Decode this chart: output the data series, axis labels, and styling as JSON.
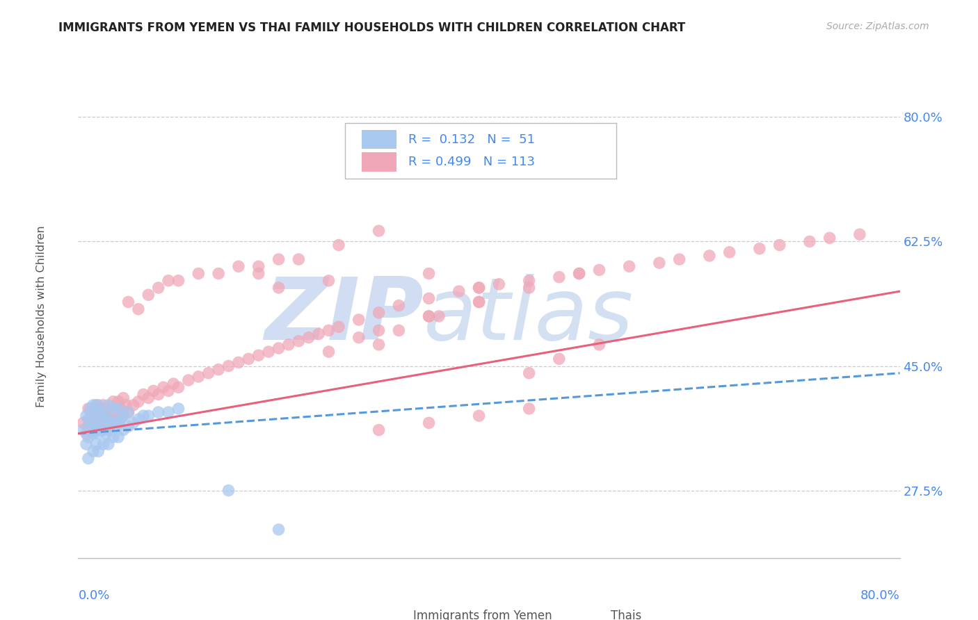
{
  "title": "IMMIGRANTS FROM YEMEN VS THAI FAMILY HOUSEHOLDS WITH CHILDREN CORRELATION CHART",
  "source": "Source: ZipAtlas.com",
  "ylabel": "Family Households with Children",
  "yticks": [
    0.275,
    0.45,
    0.625,
    0.8
  ],
  "ytick_labels": [
    "27.5%",
    "45.0%",
    "62.5%",
    "80.0%"
  ],
  "xtick_left": "0.0%",
  "xtick_right": "80.0%",
  "xlim": [
    0.0,
    0.82
  ],
  "ylim": [
    0.18,
    0.86
  ],
  "color_blue": "#a8c8f0",
  "color_pink": "#f0a8b8",
  "color_blue_line": "#5599dd",
  "color_pink_line": "#e8607a",
  "color_legend_text": "#4488ee",
  "color_axis_labels": "#4488ee",
  "color_title": "#222222",
  "color_source": "#aaaaaa",
  "color_grid": "#cccccc",
  "color_watermark_zip": "#c8d8f0",
  "color_watermark_atlas": "#b0c8e8",
  "background_color": "#ffffff",
  "blue_x": [
    0.005,
    0.008,
    0.008,
    0.01,
    0.01,
    0.01,
    0.012,
    0.012,
    0.015,
    0.015,
    0.015,
    0.015,
    0.018,
    0.018,
    0.018,
    0.02,
    0.02,
    0.02,
    0.02,
    0.022,
    0.022,
    0.025,
    0.025,
    0.025,
    0.028,
    0.028,
    0.03,
    0.03,
    0.03,
    0.03,
    0.035,
    0.035,
    0.035,
    0.038,
    0.04,
    0.04,
    0.04,
    0.042,
    0.045,
    0.045,
    0.05,
    0.05,
    0.055,
    0.06,
    0.065,
    0.07,
    0.08,
    0.09,
    0.1,
    0.15,
    0.2
  ],
  "blue_y": [
    0.36,
    0.34,
    0.38,
    0.32,
    0.35,
    0.375,
    0.36,
    0.39,
    0.33,
    0.355,
    0.37,
    0.395,
    0.34,
    0.36,
    0.385,
    0.33,
    0.355,
    0.37,
    0.395,
    0.36,
    0.385,
    0.34,
    0.36,
    0.38,
    0.355,
    0.375,
    0.34,
    0.36,
    0.375,
    0.395,
    0.35,
    0.37,
    0.39,
    0.365,
    0.35,
    0.37,
    0.39,
    0.375,
    0.36,
    0.38,
    0.365,
    0.385,
    0.37,
    0.375,
    0.38,
    0.38,
    0.385,
    0.385,
    0.39,
    0.275,
    0.22
  ],
  "pink_x": [
    0.005,
    0.008,
    0.01,
    0.01,
    0.012,
    0.015,
    0.015,
    0.018,
    0.018,
    0.02,
    0.02,
    0.022,
    0.025,
    0.025,
    0.028,
    0.03,
    0.03,
    0.032,
    0.035,
    0.035,
    0.038,
    0.04,
    0.04,
    0.042,
    0.045,
    0.045,
    0.048,
    0.05,
    0.055,
    0.06,
    0.065,
    0.07,
    0.075,
    0.08,
    0.085,
    0.09,
    0.095,
    0.1,
    0.11,
    0.12,
    0.13,
    0.14,
    0.15,
    0.16,
    0.17,
    0.18,
    0.19,
    0.2,
    0.21,
    0.22,
    0.23,
    0.24,
    0.25,
    0.26,
    0.28,
    0.3,
    0.32,
    0.35,
    0.38,
    0.4,
    0.42,
    0.45,
    0.48,
    0.5,
    0.52,
    0.55,
    0.58,
    0.6,
    0.63,
    0.65,
    0.68,
    0.7,
    0.73,
    0.75,
    0.78,
    0.2,
    0.3,
    0.35,
    0.4,
    0.45,
    0.48,
    0.52,
    0.18,
    0.22,
    0.26,
    0.3,
    0.35,
    0.4,
    0.45,
    0.5,
    0.3,
    0.35,
    0.4,
    0.45,
    0.25,
    0.28,
    0.32,
    0.36,
    0.05,
    0.06,
    0.07,
    0.08,
    0.09,
    0.1,
    0.12,
    0.14,
    0.16,
    0.18,
    0.2,
    0.25,
    0.3,
    0.35,
    0.4
  ],
  "pink_y": [
    0.37,
    0.355,
    0.365,
    0.39,
    0.375,
    0.36,
    0.39,
    0.38,
    0.395,
    0.365,
    0.39,
    0.38,
    0.37,
    0.395,
    0.38,
    0.365,
    0.39,
    0.38,
    0.37,
    0.4,
    0.385,
    0.375,
    0.4,
    0.39,
    0.38,
    0.405,
    0.395,
    0.385,
    0.395,
    0.4,
    0.41,
    0.405,
    0.415,
    0.41,
    0.42,
    0.415,
    0.425,
    0.42,
    0.43,
    0.435,
    0.44,
    0.445,
    0.45,
    0.455,
    0.46,
    0.465,
    0.47,
    0.475,
    0.48,
    0.485,
    0.49,
    0.495,
    0.5,
    0.505,
    0.515,
    0.525,
    0.535,
    0.545,
    0.555,
    0.56,
    0.565,
    0.57,
    0.575,
    0.58,
    0.585,
    0.59,
    0.595,
    0.6,
    0.605,
    0.61,
    0.615,
    0.62,
    0.625,
    0.63,
    0.635,
    0.56,
    0.48,
    0.52,
    0.54,
    0.44,
    0.46,
    0.48,
    0.58,
    0.6,
    0.62,
    0.64,
    0.58,
    0.56,
    0.56,
    0.58,
    0.36,
    0.37,
    0.38,
    0.39,
    0.47,
    0.49,
    0.5,
    0.52,
    0.54,
    0.53,
    0.55,
    0.56,
    0.57,
    0.57,
    0.58,
    0.58,
    0.59,
    0.59,
    0.6,
    0.57,
    0.5,
    0.52,
    0.54
  ]
}
